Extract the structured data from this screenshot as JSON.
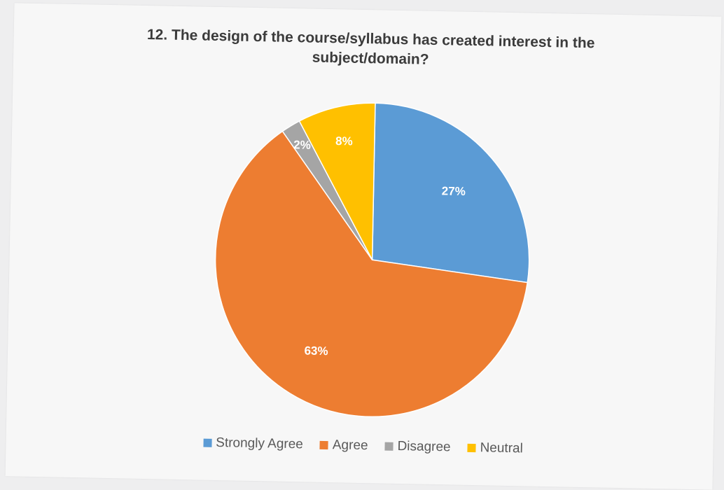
{
  "chart_data": {
    "type": "pie",
    "title": "12. The design of the course/syllabus has created interest in the subject/domain?",
    "categories": [
      "Strongly Agree",
      "Agree",
      "Disagree",
      "Neutral"
    ],
    "values": [
      27,
      63,
      2,
      8
    ],
    "labels": [
      "27%",
      "63%",
      "2%",
      "8%"
    ],
    "colors": [
      "#5b9bd5",
      "#ed7d31",
      "#a5a5a5",
      "#ffc000"
    ],
    "legend_position": "bottom"
  }
}
